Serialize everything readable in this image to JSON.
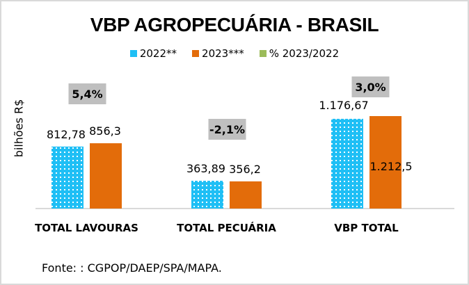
{
  "chart_data": {
    "type": "bar",
    "title": "VBP AGROPECUÁRIA  - BRASIL",
    "ylabel": "bilhões R$",
    "xlabel": "",
    "categories": [
      "TOTAL LAVOURAS",
      "TOTAL PECUÁRIA",
      "VBP TOTAL"
    ],
    "series": [
      {
        "name": "2022**",
        "color": "#1fbff5",
        "pattern": "dotted",
        "values": [
          812.78,
          363.89,
          1176.67
        ],
        "labels": [
          "812,78",
          "363,89",
          "1.176,67"
        ]
      },
      {
        "name": "2023***",
        "color": "#e36c0a",
        "values": [
          856.3,
          356.2,
          1212.5
        ],
        "labels": [
          "856,3",
          "356,2",
          "1.212,5"
        ]
      },
      {
        "name": "% 2023/2022",
        "color": "#9bbb59",
        "values": [
          5.4,
          -2.1,
          3.0
        ],
        "labels": [
          "5,4%",
          "-2,1%",
          "3,0%"
        ]
      }
    ],
    "ylim": [
      0,
      1212.5
    ],
    "grid": false,
    "legend_position": "top"
  },
  "footer": {
    "source": "Fonte: : CGPOP/DAEP/SPA/MAPA."
  }
}
